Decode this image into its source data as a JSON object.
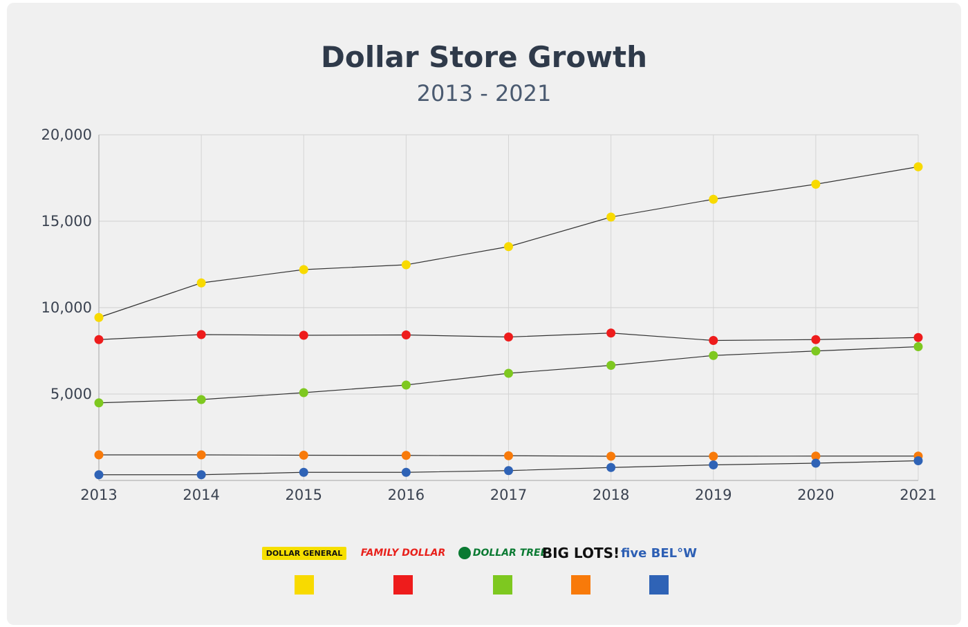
{
  "title": "Dollar Store Growth",
  "subtitle": "2013 - 2021",
  "chart_data": {
    "type": "line",
    "title": "Dollar Store Growth",
    "subtitle": "2013 - 2021",
    "xlabel": "",
    "ylabel": "",
    "x": [
      "2013",
      "2014",
      "2015",
      "2016",
      "2017",
      "2018",
      "2019",
      "2020",
      "2021"
    ],
    "yticks": [
      "20,000",
      "15,000",
      "10,000",
      "5,000"
    ],
    "ylim": [
      0,
      20000
    ],
    "grid": true,
    "legend_position": "bottom",
    "series": [
      {
        "name": "DOLLAR GENERAL",
        "color": "#f8da00",
        "values": [
          9430,
          11430,
          12200,
          12480,
          13530,
          15240,
          16270,
          17140,
          18150
        ]
      },
      {
        "name": "FAMILY DOLLAR",
        "color": "#ee1c1c",
        "values": [
          8150,
          8440,
          8400,
          8420,
          8300,
          8530,
          8100,
          8150,
          8270
        ]
      },
      {
        "name": "DOLLAR TREE",
        "color": "#7ec820",
        "values": [
          4490,
          4680,
          5080,
          5520,
          6200,
          6660,
          7230,
          7490,
          7740
        ]
      },
      {
        "name": "BIG LOTS!",
        "color": "#f87a0a",
        "values": [
          1480,
          1480,
          1460,
          1450,
          1430,
          1400,
          1400,
          1410,
          1410
        ]
      },
      {
        "name": "five BEL°W",
        "color": "#2f63b6",
        "values": [
          330,
          330,
          470,
          470,
          570,
          750,
          900,
          1000,
          1140
        ]
      }
    ]
  }
}
